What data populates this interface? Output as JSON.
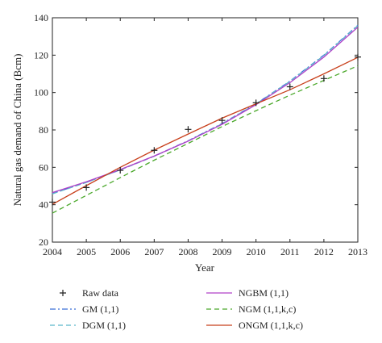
{
  "chart_data": {
    "type": "line",
    "xlabel": "Year",
    "ylabel": "Natural gas demand of China (Bcm)",
    "xlim": [
      2004,
      2013
    ],
    "ylim": [
      20,
      140
    ],
    "x_ticks": [
      2004,
      2005,
      2006,
      2007,
      2008,
      2009,
      2010,
      2011,
      2012,
      2013
    ],
    "y_ticks": [
      20,
      40,
      60,
      80,
      100,
      120,
      140
    ],
    "grid": false,
    "legend_position": "bottom",
    "x": [
      2004,
      2005,
      2006,
      2007,
      2008,
      2009,
      2010,
      2011,
      2012,
      2013
    ],
    "series": [
      {
        "name": "Raw data",
        "style": "marker-plus",
        "color": "#222222",
        "values": [
          41.4,
          49.2,
          58.4,
          69.1,
          80.3,
          85.1,
          94.5,
          103.1,
          107.5,
          119.0
        ]
      },
      {
        "name": "GM (1,1)",
        "style": "dashdot",
        "color": "#3a6fd8",
        "values": [
          46.0,
          52.0,
          58.7,
          66.0,
          74.2,
          83.4,
          94.0,
          106.1,
          120.0,
          136.0
        ]
      },
      {
        "name": "DGM (1,1)",
        "style": "dashed",
        "color": "#5bb8c9",
        "values": [
          45.8,
          51.9,
          58.6,
          65.9,
          74.1,
          83.3,
          93.9,
          106.0,
          119.8,
          135.8
        ]
      },
      {
        "name": "NGBM (1,1)",
        "style": "solid",
        "color": "#b040c8",
        "values": [
          46.5,
          52.3,
          58.8,
          66.0,
          74.0,
          83.0,
          93.5,
          105.3,
          119.0,
          135.0
        ]
      },
      {
        "name": "NGM (1,1,k,c)",
        "style": "dashed",
        "color": "#4aa82a",
        "values": [
          35.5,
          45.0,
          54.5,
          63.8,
          72.8,
          81.8,
          90.3,
          98.6,
          106.5,
          114.3
        ]
      },
      {
        "name": "ONGM (1,1,k,c)",
        "style": "solid",
        "color": "#c8401c",
        "values": [
          40.2,
          50.2,
          60.0,
          69.2,
          77.8,
          86.3,
          94.0,
          101.5,
          110.0,
          118.8
        ]
      }
    ]
  }
}
